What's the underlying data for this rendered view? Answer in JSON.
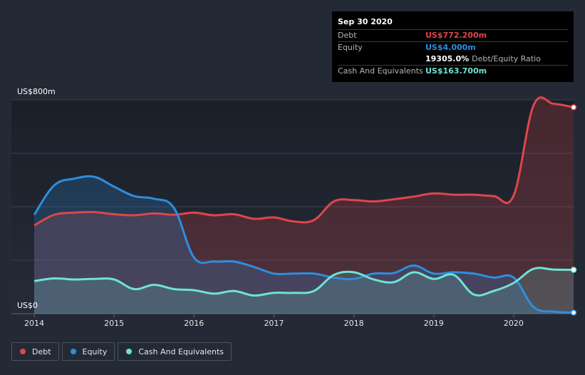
{
  "chart_data": {
    "type": "area",
    "y_unit_labels": [
      "US$0",
      "US$800m"
    ],
    "ylim": [
      0,
      800
    ],
    "xlim": [
      2014.0,
      2020.75
    ],
    "x_ticks": [
      "2014",
      "2015",
      "2016",
      "2017",
      "2018",
      "2019",
      "2020"
    ],
    "grid": true,
    "legend_position": "bottom-left",
    "series": [
      {
        "name": "Debt",
        "color": "#e0454b",
        "x": [
          2014.0,
          2014.25,
          2014.5,
          2014.75,
          2015.0,
          2015.25,
          2015.5,
          2015.75,
          2016.0,
          2016.25,
          2016.5,
          2016.75,
          2017.0,
          2017.25,
          2017.5,
          2017.75,
          2018.0,
          2018.25,
          2018.5,
          2018.75,
          2019.0,
          2019.25,
          2019.5,
          2019.75,
          2020.0,
          2020.25,
          2020.5,
          2020.75
        ],
        "values": [
          330,
          370,
          378,
          380,
          372,
          368,
          375,
          370,
          378,
          368,
          372,
          355,
          360,
          345,
          350,
          420,
          425,
          420,
          428,
          438,
          450,
          445,
          445,
          440,
          442,
          780,
          785,
          772
        ]
      },
      {
        "name": "Equity",
        "color": "#2c8ee0",
        "x": [
          2014.0,
          2014.25,
          2014.5,
          2014.75,
          2015.0,
          2015.25,
          2015.5,
          2015.75,
          2016.0,
          2016.25,
          2016.5,
          2016.75,
          2017.0,
          2017.25,
          2017.5,
          2017.75,
          2018.0,
          2018.25,
          2018.5,
          2018.75,
          2019.0,
          2019.25,
          2019.5,
          2019.75,
          2020.0,
          2020.25,
          2020.5,
          2020.75
        ],
        "values": [
          370,
          480,
          505,
          512,
          475,
          440,
          430,
          395,
          210,
          195,
          195,
          175,
          150,
          150,
          150,
          135,
          130,
          150,
          152,
          180,
          150,
          155,
          150,
          135,
          135,
          25,
          8,
          4
        ]
      },
      {
        "name": "Cash And Equivalents",
        "color": "#6ee3d4",
        "x": [
          2014.0,
          2014.25,
          2014.5,
          2014.75,
          2015.0,
          2015.25,
          2015.5,
          2015.75,
          2016.0,
          2016.25,
          2016.5,
          2016.75,
          2017.0,
          2017.25,
          2017.5,
          2017.75,
          2018.0,
          2018.25,
          2018.5,
          2018.75,
          2019.0,
          2019.25,
          2019.5,
          2019.75,
          2020.0,
          2020.25,
          2020.5,
          2020.75
        ],
        "values": [
          122,
          132,
          128,
          130,
          128,
          92,
          108,
          92,
          88,
          75,
          85,
          68,
          78,
          78,
          85,
          145,
          155,
          128,
          118,
          155,
          130,
          145,
          72,
          85,
          115,
          168,
          165,
          164
        ]
      }
    ]
  },
  "tooltip": {
    "date": "Sep 30 2020",
    "debt_label": "Debt",
    "debt_value": "US$772.200m",
    "equity_label": "Equity",
    "equity_value": "US$4.000m",
    "ratio_value": "19305.0%",
    "ratio_label": "Debt/Equity Ratio",
    "cash_label": "Cash And Equivalents",
    "cash_value": "US$163.700m"
  },
  "legend": [
    {
      "label": "Debt",
      "color": "#e0454b"
    },
    {
      "label": "Equity",
      "color": "#2c8ee0"
    },
    {
      "label": "Cash And Equivalents",
      "color": "#6ee3d4"
    }
  ]
}
